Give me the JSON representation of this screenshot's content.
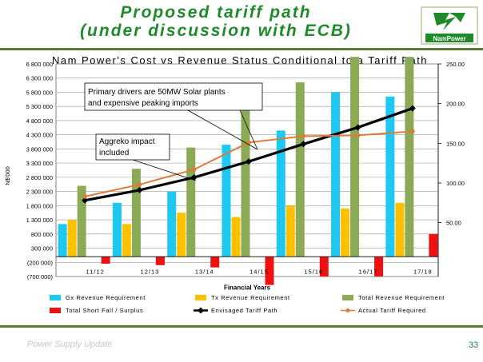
{
  "slide": {
    "title_line1": "Proposed tariff path",
    "title_line2": "(under discussion with ECB)",
    "logo_text": "NamPower",
    "footer": "Power Supply Update",
    "page_number": "33"
  },
  "chart_data": {
    "type": "bar",
    "title": "Nam Power's Cost vs Revenue Status Conditional to a Tariff Path",
    "xlabel": "Financial Years",
    "ylabel": "N$'000",
    "categories": [
      "11/12",
      "12/13",
      "13/14",
      "14/15",
      "15/16",
      "16/17",
      "17/18"
    ],
    "y_left": {
      "min": -700000,
      "max": 6800000,
      "ticks": [
        -700000,
        -200000,
        300000,
        800000,
        1300000,
        1800000,
        2300000,
        2800000,
        3300000,
        3800000,
        4300000,
        4800000,
        5300000,
        5800000,
        6300000,
        6800000
      ],
      "tick_labels": [
        "(700 000)",
        "(200 000)",
        "300 000",
        "800 000",
        "1 300 000",
        "1 800 000",
        "2 300 000",
        "2 800 000",
        "3 300 000",
        "3 800 000",
        "4 300 000",
        "4 800 000",
        "5 300 000",
        "5 800 000",
        "6 300 000",
        "6 800 000"
      ]
    },
    "y_right": {
      "min": 0,
      "max": 250,
      "ticks": [
        50,
        100,
        150,
        200,
        250
      ],
      "tick_labels": [
        "50.00",
        "100.00",
        "150.00",
        "200.00",
        "250.00"
      ]
    },
    "series": [
      {
        "name": "Gx Revenue Requirement",
        "kind": "bar",
        "axis": "left",
        "color": "#1ec8f0",
        "values": [
          1150000,
          1900000,
          2300000,
          3950000,
          4450000,
          5800000,
          5650000
        ]
      },
      {
        "name": "Tx Revenue Requirement",
        "kind": "bar",
        "axis": "left",
        "color": "#ffc000",
        "values": [
          1300000,
          1150000,
          1550000,
          1400000,
          1800000,
          1700000,
          1900000
        ]
      },
      {
        "name": "Total Revenue Requirement",
        "kind": "bar",
        "axis": "left",
        "color": "#8aaa55",
        "values": [
          2500000,
          3100000,
          3850000,
          5300000,
          6150000,
          7050000,
          7050000
        ]
      },
      {
        "name": "Total Short Fall / Surplus",
        "kind": "bar",
        "axis": "left",
        "color": "#ee1111",
        "values": [
          -250000,
          -300000,
          -380000,
          -1000000,
          -700000,
          -700000,
          800000
        ]
      },
      {
        "name": "Envisaged Tariff Path",
        "kind": "line",
        "axis": "right",
        "color": "#000000",
        "values": [
          78,
          91,
          107,
          127,
          149,
          170,
          194
        ]
      },
      {
        "name": "Actual Tariff Required",
        "kind": "line",
        "axis": "right",
        "color": "#e07b39",
        "values": [
          83,
          98,
          117,
          151,
          159,
          160,
          165
        ]
      }
    ],
    "annotations": [
      {
        "text_line1": "Primary drivers are 50MW Solar plants",
        "text_line2": "and expensive peaking imports"
      },
      {
        "text_line1": "Aggreko impact",
        "text_line2": "included"
      }
    ],
    "legend_position": "bottom",
    "grid": true
  }
}
